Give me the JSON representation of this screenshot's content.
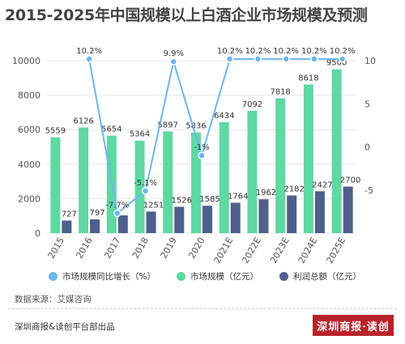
{
  "chart_data": {
    "type": "bar",
    "title": "2015-2025年中国规模以上白酒企业市场规模及预测",
    "categories": [
      "2015",
      "2016",
      "2017",
      "2018",
      "2019",
      "2020",
      "2021E",
      "2022E",
      "2023E",
      "2024E",
      "2025E"
    ],
    "series": [
      {
        "name": "市场规模（亿元）",
        "type": "bar",
        "axis": "left",
        "color": "#5fd8a3",
        "values": [
          5559,
          6126,
          5654,
          5364,
          5897,
          5836,
          6434,
          7092,
          7818,
          8618,
          9500
        ]
      },
      {
        "name": "利润总额（亿元）",
        "type": "bar",
        "axis": "left",
        "color": "#4f5f8c",
        "values": [
          727,
          797,
          1028,
          1251,
          1526,
          1585,
          1764,
          1962,
          2182,
          2427,
          2700
        ]
      },
      {
        "name": "市场规模同比增长（%）",
        "type": "line",
        "axis": "right",
        "color": "#6db6f0",
        "values": [
          null,
          10.2,
          -7.7,
          -5.1,
          9.9,
          -1,
          10.2,
          10.2,
          10.2,
          10.2,
          10.2
        ]
      }
    ],
    "left_axis": {
      "min": 0,
      "max": 10000,
      "ticks": [
        0,
        2000,
        4000,
        6000,
        8000,
        10000
      ]
    },
    "right_axis": {
      "min": -10,
      "max": 10,
      "ticks": [
        -5,
        0,
        5,
        10
      ]
    },
    "bar_labels": {
      "market": [
        "5559",
        "6126",
        "5654",
        "5364",
        "5897",
        "5836",
        "6434",
        "7092",
        "7818",
        "8618",
        "9500"
      ],
      "profit": [
        "727",
        "797",
        "",
        "1251",
        "1526",
        "1585",
        "1764",
        "1962",
        "2182",
        "2427",
        "2700"
      ]
    },
    "line_labels": [
      "",
      "10.2%",
      "-7.7%",
      "-5.1%",
      "9.9%",
      "-1%",
      "10.2%",
      "10.2%",
      "10.2%",
      "10.2%",
      "10.2%"
    ],
    "legend_position": "bottom"
  },
  "legend": [
    {
      "label": "市场规模同比增长（%）",
      "color": "#6db6f0"
    },
    {
      "label": "市场规模（亿元）",
      "color": "#5fd8a3"
    },
    {
      "label": "利润总额（亿元）",
      "color": "#4f5f8c"
    }
  ],
  "source": "数据来源：艾媒咨询",
  "footer": "深圳商报&读创平台部出品",
  "logo": "深圳商报·读创"
}
